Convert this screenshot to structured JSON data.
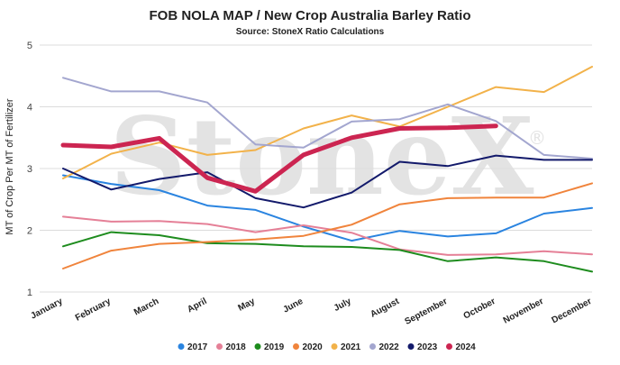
{
  "chart_data": {
    "type": "line",
    "title": "FOB NOLA MAP / New Crop Australia Barley Ratio",
    "subtitle": "Source: StoneX Ratio Calculations",
    "ylabel": "MT of Crop Per MT of Fertilizer",
    "xlabel": "",
    "watermark": "StoneX",
    "watermark_mark": "®",
    "ylim": [
      1,
      5
    ],
    "yticks": [
      "1",
      "2",
      "3",
      "4",
      "5"
    ],
    "grid": true,
    "legend_position": "bottom",
    "categories": [
      "January",
      "February",
      "March",
      "April",
      "May",
      "June",
      "July",
      "August",
      "September",
      "October",
      "November",
      "December"
    ],
    "series": [
      {
        "name": "2017",
        "color": "#2a84e0",
        "values": [
          2.89,
          2.75,
          2.65,
          2.4,
          2.33,
          2.06,
          1.83,
          1.99,
          1.9,
          1.95,
          2.27,
          2.36
        ]
      },
      {
        "name": "2018",
        "color": "#e58097",
        "values": [
          2.22,
          2.14,
          2.15,
          2.1,
          1.97,
          2.08,
          1.96,
          1.69,
          1.6,
          1.61,
          1.66,
          1.61
        ]
      },
      {
        "name": "2019",
        "color": "#1e8c1e",
        "values": [
          1.74,
          1.97,
          1.92,
          1.79,
          1.78,
          1.74,
          1.73,
          1.68,
          1.5,
          1.56,
          1.5,
          1.33
        ]
      },
      {
        "name": "2020",
        "color": "#f0843c",
        "values": [
          1.38,
          1.67,
          1.78,
          1.81,
          1.85,
          1.91,
          2.09,
          2.42,
          2.52,
          2.53,
          2.53,
          2.76
        ]
      },
      {
        "name": "2021",
        "color": "#f2b24a",
        "values": [
          2.84,
          3.24,
          3.42,
          3.22,
          3.3,
          3.65,
          3.86,
          3.68,
          4.0,
          4.32,
          4.24,
          4.65
        ]
      },
      {
        "name": "2022",
        "color": "#a3a6cf",
        "values": [
          4.47,
          4.25,
          4.25,
          4.07,
          3.39,
          3.34,
          3.76,
          3.8,
          4.04,
          3.77,
          3.22,
          3.16
        ]
      },
      {
        "name": "2023",
        "color": "#131a6b",
        "values": [
          3.0,
          2.66,
          2.83,
          2.94,
          2.52,
          2.37,
          2.61,
          3.11,
          3.04,
          3.21,
          3.14,
          3.14
        ]
      },
      {
        "name": "2024",
        "color": "#cc2551",
        "values": [
          3.38,
          3.35,
          3.49,
          2.85,
          2.63,
          3.22,
          3.5,
          3.65,
          3.66,
          3.69,
          null,
          null
        ]
      }
    ]
  }
}
